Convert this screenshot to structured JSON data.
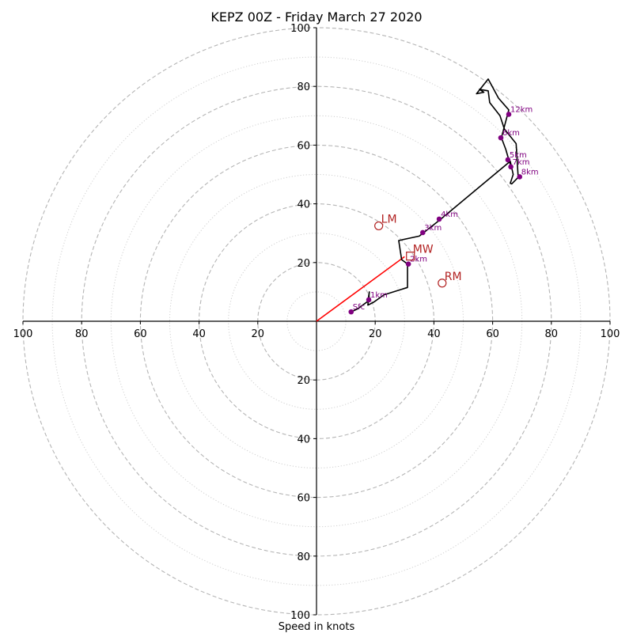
{
  "chart_data": {
    "type": "scatter",
    "title": "KEPZ 00Z - Friday March 27 2020",
    "xlabel": "Speed in knots",
    "ylabel": "",
    "xlim": [
      -100,
      100
    ],
    "ylim": [
      -100,
      100
    ],
    "rings": [
      10,
      20,
      30,
      40,
      50,
      60,
      70,
      80,
      90,
      100
    ],
    "tick_labels": {
      "x_left": [
        "100",
        "80",
        "60",
        "40",
        "20"
      ],
      "x_right": [
        "20",
        "40",
        "60",
        "80",
        "100"
      ],
      "y_up": [
        "20",
        "40",
        "60",
        "80",
        "100"
      ],
      "y_down": [
        "20",
        "40",
        "60",
        "80",
        "100"
      ]
    },
    "hodograph_trace": [
      [
        11.8,
        3.2
      ],
      [
        14,
        4.2
      ],
      [
        17.5,
        6.8
      ],
      [
        18,
        10
      ],
      [
        17.5,
        5.5
      ],
      [
        19.5,
        6.5
      ],
      [
        23,
        9
      ],
      [
        31,
        11.5
      ],
      [
        31,
        19.5
      ],
      [
        29,
        21
      ],
      [
        28,
        27.5
      ],
      [
        35,
        29
      ],
      [
        42,
        34.5
      ],
      [
        66,
        54.5
      ],
      [
        67,
        50
      ],
      [
        66,
        47
      ],
      [
        66.5,
        46.8
      ],
      [
        68.7,
        49
      ],
      [
        68,
        60.5
      ],
      [
        64,
        65.5
      ],
      [
        62.5,
        70
      ],
      [
        59,
        74.5
      ],
      [
        58.5,
        78.5
      ],
      [
        55.5,
        79
      ],
      [
        57,
        78
      ],
      [
        54.5,
        77.5
      ],
      [
        58.5,
        82.5
      ],
      [
        62,
        76
      ],
      [
        65.5,
        72
      ],
      [
        63,
        62.5
      ],
      [
        64.5,
        58.5
      ],
      [
        65.5,
        55
      ],
      [
        66.2,
        53
      ]
    ],
    "height_points": [
      {
        "label": "Sfc",
        "x": 11.8,
        "y": 3.2
      },
      {
        "label": "1km",
        "x": 17.8,
        "y": 7.3
      },
      {
        "label": "2km",
        "x": 31.3,
        "y": 19.5
      },
      {
        "label": "3km",
        "x": 36.2,
        "y": 30.2
      },
      {
        "label": "4km",
        "x": 41.8,
        "y": 34.8
      },
      {
        "label": "5km",
        "x": 65.2,
        "y": 55
      },
      {
        "label": "7km",
        "x": 66.2,
        "y": 52.6
      },
      {
        "label": "8km",
        "x": 69.2,
        "y": 49.2
      },
      {
        "label": "6km",
        "x": 62.8,
        "y": 62.5
      },
      {
        "label": "12km",
        "x": 65.5,
        "y": 70.5
      }
    ],
    "storm_motion_markers": [
      {
        "label": "LM",
        "x": 21.2,
        "y": 32.5,
        "shape": "circle"
      },
      {
        "label": "MW",
        "x": 32.0,
        "y": 22.2,
        "shape": "square"
      },
      {
        "label": "RM",
        "x": 42.8,
        "y": 13.0,
        "shape": "circle"
      }
    ],
    "shear_vector": {
      "from": [
        0,
        0
      ],
      "to": [
        30,
        22
      ]
    },
    "colors": {
      "trace": "#000000",
      "height_points": "#800080",
      "markers": "#b22222",
      "shear_vector": "#ff0000",
      "rings": "#b5b5b5",
      "axes": "#000000"
    }
  }
}
